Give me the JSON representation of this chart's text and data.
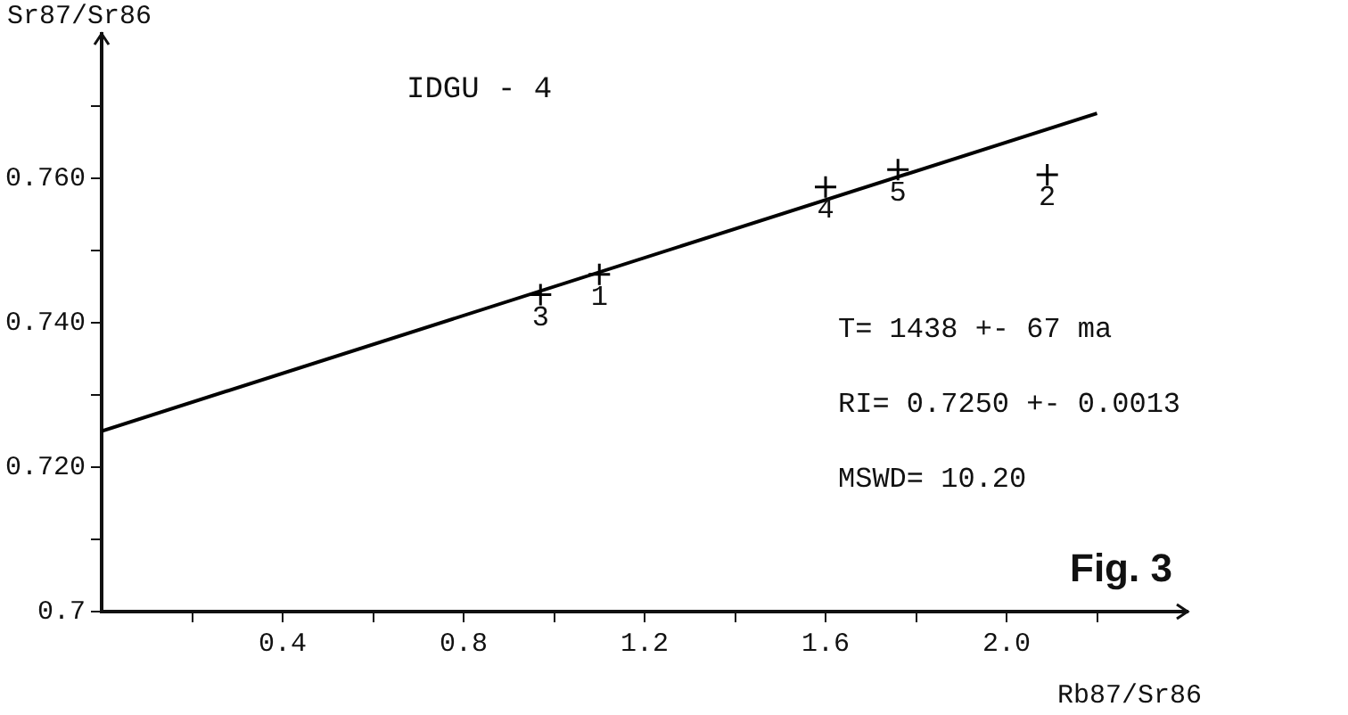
{
  "chart_data": {
    "type": "scatter",
    "title": "IDGU - 4",
    "xlabel": "Rb87/Sr86",
    "ylabel": "Sr87/Sr86",
    "xlim": [
      0,
      2.4
    ],
    "ylim": [
      0.7,
      0.78
    ],
    "xticks": [
      {
        "value": 0.2,
        "label": null
      },
      0.4,
      {
        "value": 0.6,
        "label": null
      },
      0.8,
      {
        "value": 1.0,
        "label": null
      },
      1.2,
      {
        "value": 1.4,
        "label": null
      },
      1.6,
      {
        "value": 1.8,
        "label": null
      },
      {
        "value": 2.0,
        "label": "2.0"
      },
      {
        "value": 2.2,
        "label": null
      }
    ],
    "yticks": [
      {
        "value": 0.7,
        "label": "0.7"
      },
      {
        "value": 0.71,
        "label": null
      },
      {
        "value": 0.72,
        "label": "0.720"
      },
      {
        "value": 0.73,
        "label": null
      },
      {
        "value": 0.74,
        "label": "0.740"
      },
      {
        "value": 0.75,
        "label": null
      },
      {
        "value": 0.76,
        "label": "0.760"
      },
      {
        "value": 0.77,
        "label": null
      }
    ],
    "marker": "cross",
    "grid": false,
    "legend": false,
    "series": [
      {
        "color": "#000000",
        "x": [
          1.1,
          2.09,
          0.97,
          1.6,
          1.76
        ],
        "values": [
          0.7467,
          0.7605,
          0.7439,
          0.7588,
          0.7612
        ]
      },
      {
        "type": "line",
        "marker": "none",
        "color": "#000000",
        "x": [
          0,
          2.2
        ],
        "values": [
          0.725,
          0.769
        ]
      }
    ],
    "annotations": [
      {
        "text": "1",
        "x": 1.1,
        "y": 0.7467
      },
      {
        "text": "2",
        "x": 2.09,
        "y": 0.7605
      },
      {
        "text": "3",
        "x": 0.97,
        "y": 0.7439
      },
      {
        "text": "4",
        "x": 1.6,
        "y": 0.7588
      },
      {
        "text": "5",
        "x": 1.76,
        "y": 0.7612
      },
      "T= 1438 +- 67 ma",
      "RI= 0.7250 +- 0.0013",
      "MSWD= 10.20",
      "Fig. 3"
    ]
  }
}
